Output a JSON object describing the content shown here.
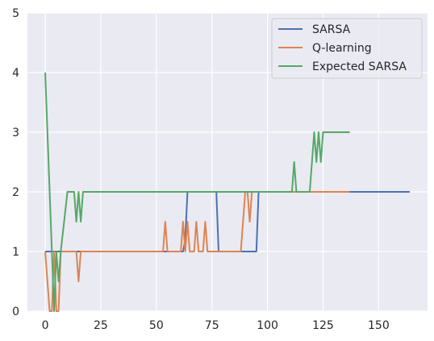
{
  "chart_data": {
    "type": "line",
    "xlim": [
      -8,
      172
    ],
    "ylim": [
      0,
      5
    ],
    "xticks": [
      0,
      25,
      50,
      75,
      100,
      125,
      150
    ],
    "yticks": [
      0,
      1,
      2,
      3,
      4,
      5
    ],
    "grid": true,
    "legend_position": "top-right",
    "series": [
      {
        "name": "SARSA",
        "color": "#4c72b0",
        "points": [
          [
            0,
            1
          ],
          [
            53,
            1
          ],
          [
            54,
            1
          ],
          [
            60,
            1
          ],
          [
            61,
            1
          ],
          [
            62,
            1
          ],
          [
            63,
            1.2
          ],
          [
            64,
            2
          ],
          [
            65,
            2
          ],
          [
            76,
            2
          ],
          [
            77,
            2
          ],
          [
            78,
            1
          ],
          [
            95,
            1
          ],
          [
            96,
            2
          ],
          [
            164,
            2
          ]
        ]
      },
      {
        "name": "Q-learning",
        "color": "#dd8452",
        "points": [
          [
            0,
            1
          ],
          [
            2,
            0
          ],
          [
            3,
            0
          ],
          [
            4,
            1
          ],
          [
            5,
            0
          ],
          [
            6,
            0
          ],
          [
            7,
            1
          ],
          [
            13,
            1
          ],
          [
            14,
            1
          ],
          [
            15,
            0.5
          ],
          [
            16,
            1
          ],
          [
            53,
            1
          ],
          [
            54,
            1.5
          ],
          [
            55,
            1
          ],
          [
            61,
            1
          ],
          [
            62,
            1.5
          ],
          [
            63,
            1
          ],
          [
            64,
            1.5
          ],
          [
            65,
            1
          ],
          [
            67,
            1
          ],
          [
            68,
            1.5
          ],
          [
            69,
            1
          ],
          [
            71,
            1
          ],
          [
            72,
            1.5
          ],
          [
            73,
            1
          ],
          [
            88,
            1
          ],
          [
            90,
            2
          ],
          [
            91,
            2
          ],
          [
            92,
            1.5
          ],
          [
            93,
            2
          ],
          [
            137,
            2
          ]
        ]
      },
      {
        "name": "Expected SARSA",
        "color": "#55a868",
        "points": [
          [
            0,
            4
          ],
          [
            3,
            1
          ],
          [
            4,
            0
          ],
          [
            5,
            1
          ],
          [
            6,
            0.5
          ],
          [
            7,
            1
          ],
          [
            10,
            2
          ],
          [
            13,
            2
          ],
          [
            14,
            1.5
          ],
          [
            15,
            2
          ],
          [
            16,
            1.5
          ],
          [
            17,
            2
          ],
          [
            111,
            2
          ],
          [
            112,
            2.5
          ],
          [
            113,
            2
          ],
          [
            119,
            2
          ],
          [
            121,
            3
          ],
          [
            122,
            2.5
          ],
          [
            123,
            3
          ],
          [
            124,
            2.5
          ],
          [
            125,
            3
          ],
          [
            137,
            3
          ]
        ]
      }
    ]
  }
}
